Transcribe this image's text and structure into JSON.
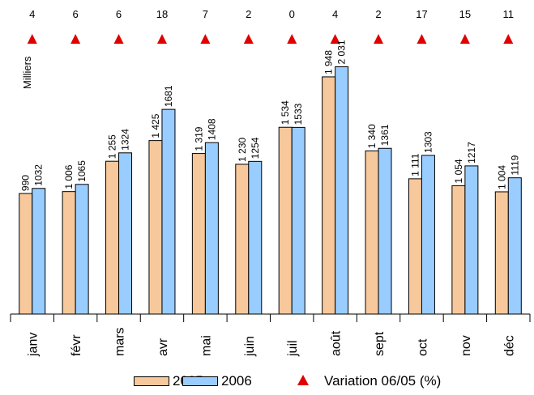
{
  "chart_data": {
    "type": "bar",
    "ylabel": "Milliers",
    "categories": [
      "janv",
      "févr",
      "mars",
      "avr",
      "mai",
      "juin",
      "juil",
      "août",
      "sept",
      "oct",
      "nov",
      "déc"
    ],
    "series": [
      {
        "name": "2005",
        "color": "#f7c89b",
        "values": [
          990,
          1006,
          1255,
          1425,
          1319,
          1230,
          1534,
          1948,
          1340,
          1111,
          1054,
          1004
        ],
        "labels": [
          "990",
          "1 006",
          "1 255",
          "1 425",
          "1 319",
          "1 230",
          "1 534",
          "1 948",
          "1 340",
          "1 111",
          "1 054",
          "1 004"
        ]
      },
      {
        "name": "2006",
        "color": "#99ccff",
        "values": [
          1032,
          1065,
          1324,
          1681,
          1408,
          1254,
          1533,
          2031,
          1361,
          1303,
          1217,
          1119
        ],
        "labels": [
          "1032",
          "1065",
          "1324",
          "1681",
          "1408",
          "1254",
          "1533",
          "2 031",
          "1361",
          "1303",
          "1217",
          "1119"
        ]
      }
    ],
    "variation": {
      "name": "Variation 06/05 (%)",
      "color": "#e00000",
      "values": [
        4,
        6,
        6,
        18,
        7,
        2,
        0,
        4,
        2,
        17,
        15,
        11
      ]
    },
    "ylim": [
      0,
      2300
    ],
    "grid": false,
    "legend": "bottom"
  }
}
